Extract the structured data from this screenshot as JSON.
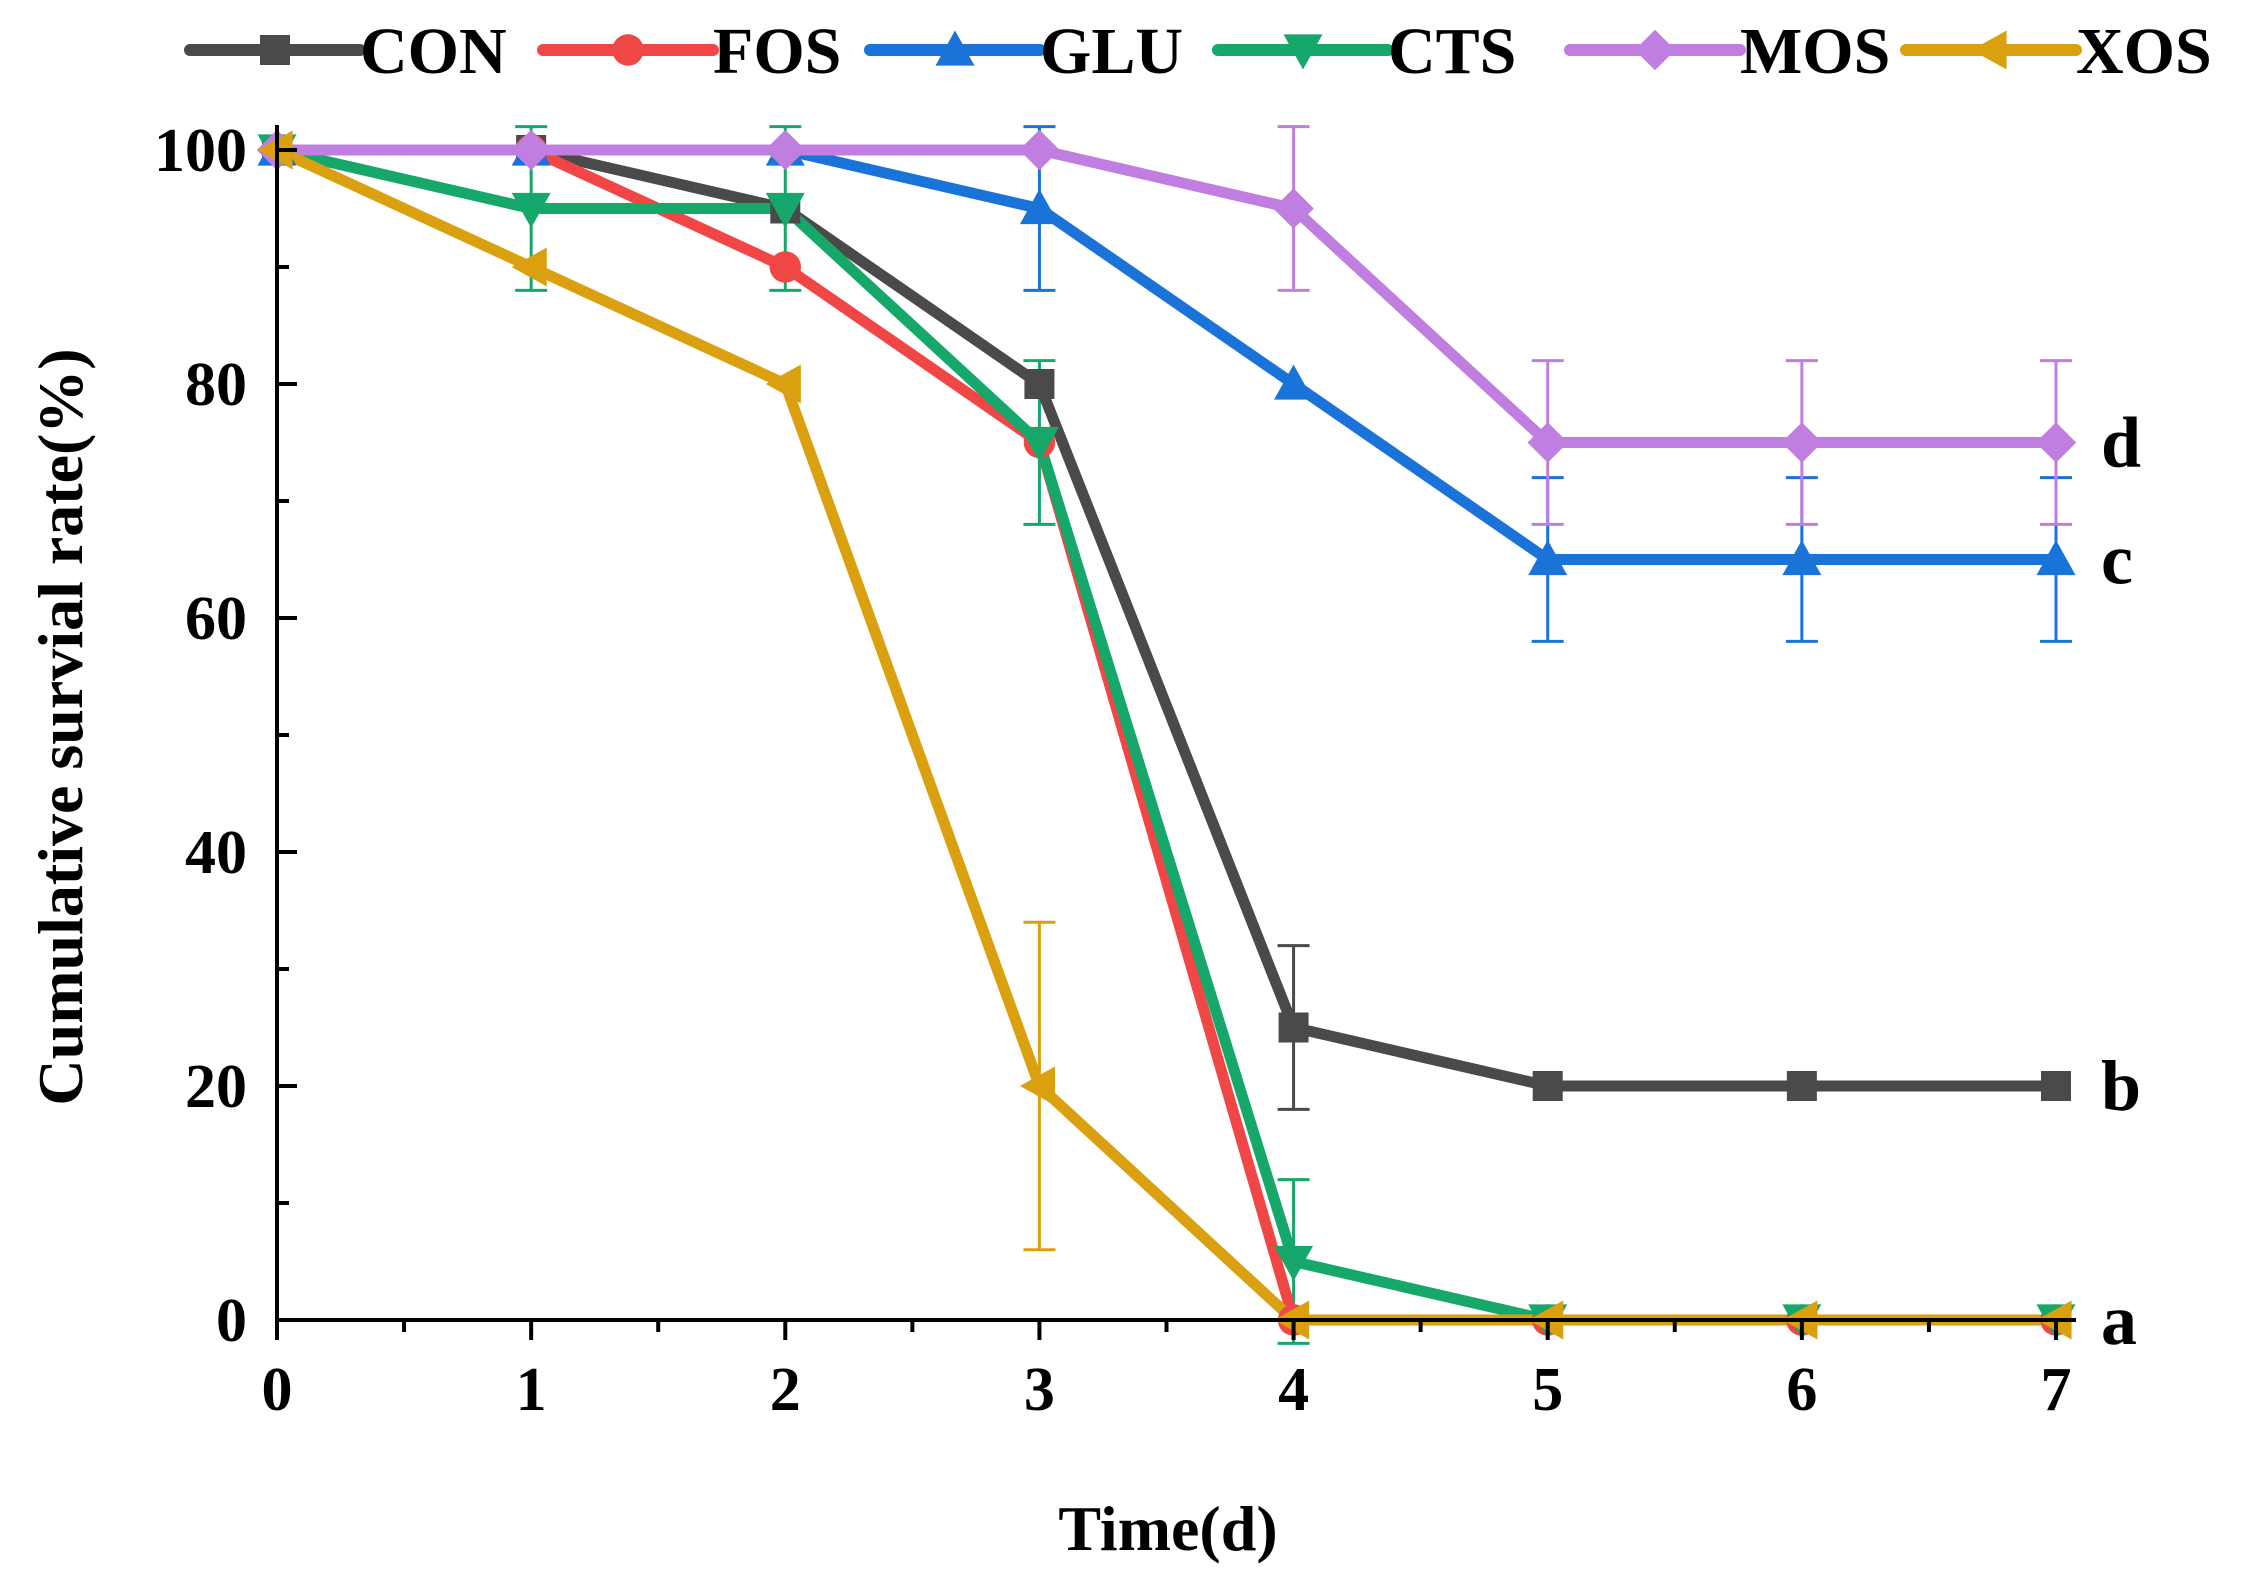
{
  "chart_data": {
    "type": "line",
    "title": "",
    "xlabel": "Time(d)",
    "ylabel": "Cumulative survial rate(%)",
    "x": [
      0,
      1,
      2,
      3,
      4,
      5,
      6,
      7
    ],
    "xlim": [
      0,
      7
    ],
    "ylim": [
      0,
      100
    ],
    "x_ticks": [
      0,
      1,
      2,
      3,
      4,
      5,
      6,
      7
    ],
    "y_ticks": [
      0,
      20,
      40,
      60,
      80,
      100
    ],
    "grid": false,
    "legend_position": "top",
    "series": [
      {
        "name": "CON",
        "color": "#4a4a4a",
        "marker": "square",
        "values": [
          100,
          100,
          95,
          80,
          25,
          20,
          20,
          20
        ],
        "errors": [
          0,
          0,
          0,
          0,
          7,
          0,
          0,
          0
        ]
      },
      {
        "name": "FOS",
        "color": "#f04646",
        "marker": "circle",
        "values": [
          100,
          100,
          90,
          75,
          0,
          0,
          0,
          0
        ],
        "errors": [
          0,
          0,
          0,
          0,
          0,
          0,
          0,
          0
        ]
      },
      {
        "name": "GLU",
        "color": "#1a73d9",
        "marker": "triangle-up",
        "values": [
          100,
          100,
          100,
          95,
          80,
          65,
          65,
          65
        ],
        "errors": [
          0,
          0,
          0,
          7,
          0,
          7,
          7,
          7
        ]
      },
      {
        "name": "CTS",
        "color": "#16a86a",
        "marker": "triangle-down",
        "values": [
          100,
          95,
          95,
          75,
          5,
          0,
          0,
          0
        ],
        "errors": [
          0,
          7,
          7,
          7,
          7,
          0,
          0,
          0
        ]
      },
      {
        "name": "MOS",
        "color": "#c07ee0",
        "marker": "diamond",
        "values": [
          100,
          100,
          100,
          100,
          95,
          75,
          75,
          75
        ],
        "errors": [
          0,
          0,
          0,
          0,
          7,
          7,
          7,
          7
        ]
      },
      {
        "name": "XOS",
        "color": "#dba010",
        "marker": "triangle-left",
        "values": [
          100,
          90,
          80,
          20,
          0,
          0,
          0,
          0
        ],
        "errors": [
          0,
          0,
          0,
          14,
          0,
          0,
          0,
          0
        ]
      }
    ],
    "annotations": [
      {
        "text": "d",
        "x": 7,
        "y": 75
      },
      {
        "text": "c",
        "x": 7,
        "y": 65
      },
      {
        "text": "b",
        "x": 7,
        "y": 20
      },
      {
        "text": "a",
        "x": 7,
        "y": 0
      }
    ]
  }
}
